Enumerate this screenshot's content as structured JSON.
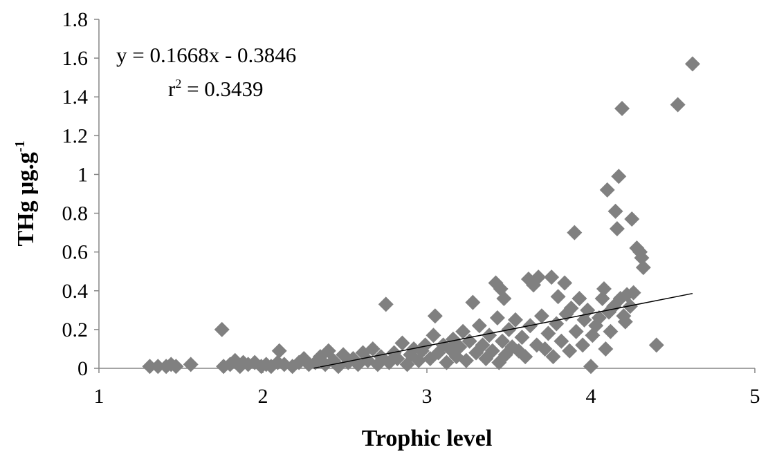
{
  "chart_data": {
    "type": "scatter",
    "xlabel": "Trophic level",
    "ylabel_main": "THg μg.g",
    "ylabel_sup": "-1",
    "xlim": [
      1,
      5
    ],
    "ylim": [
      0,
      1.8
    ],
    "xticks": [
      "1",
      "2",
      "3",
      "4",
      "5"
    ],
    "yticks": [
      "0",
      "0.2",
      "0.4",
      "0.6",
      "0.8",
      "1",
      "1.2",
      "1.4",
      "1.6",
      "1.8"
    ],
    "grid": false,
    "legend": "none",
    "marker": "diamond",
    "marker_color": "#808080",
    "trendline": {
      "slope": 0.1668,
      "intercept": -0.3846,
      "x_range": [
        2.31,
        4.62
      ],
      "color": "#000000"
    },
    "annotation": {
      "equation": "y = 0.1668x  - 0.3846",
      "r2_base": "r",
      "r2_sup": "2",
      "r2_rest": " = 0.3439"
    },
    "points": [
      [
        1.31,
        0.01
      ],
      [
        1.36,
        0.01
      ],
      [
        1.41,
        0.01
      ],
      [
        1.44,
        0.02
      ],
      [
        1.47,
        0.01
      ],
      [
        1.56,
        0.02
      ],
      [
        1.75,
        0.2
      ],
      [
        1.76,
        0.01
      ],
      [
        1.8,
        0.02
      ],
      [
        1.83,
        0.04
      ],
      [
        1.86,
        0.01
      ],
      [
        1.88,
        0.03
      ],
      [
        1.91,
        0.02
      ],
      [
        1.95,
        0.03
      ],
      [
        1.99,
        0.01
      ],
      [
        2.02,
        0.02
      ],
      [
        2.05,
        0.01
      ],
      [
        2.09,
        0.03
      ],
      [
        2.1,
        0.09
      ],
      [
        2.13,
        0.02
      ],
      [
        2.18,
        0.01
      ],
      [
        2.22,
        0.03
      ],
      [
        2.25,
        0.05
      ],
      [
        2.28,
        0.02
      ],
      [
        2.32,
        0.03
      ],
      [
        2.35,
        0.06
      ],
      [
        2.38,
        0.02
      ],
      [
        2.4,
        0.09
      ],
      [
        2.43,
        0.04
      ],
      [
        2.46,
        0.01
      ],
      [
        2.49,
        0.07
      ],
      [
        2.52,
        0.03
      ],
      [
        2.55,
        0.05
      ],
      [
        2.58,
        0.02
      ],
      [
        2.61,
        0.08
      ],
      [
        2.64,
        0.04
      ],
      [
        2.67,
        0.1
      ],
      [
        2.7,
        0.02
      ],
      [
        2.72,
        0.06
      ],
      [
        2.75,
        0.33
      ],
      [
        2.77,
        0.03
      ],
      [
        2.8,
        0.08
      ],
      [
        2.82,
        0.05
      ],
      [
        2.85,
        0.13
      ],
      [
        2.88,
        0.02
      ],
      [
        2.9,
        0.07
      ],
      [
        2.92,
        0.1
      ],
      [
        2.95,
        0.04
      ],
      [
        2.97,
        0.09
      ],
      [
        2.99,
        0.12
      ],
      [
        3.02,
        0.05
      ],
      [
        3.04,
        0.17
      ],
      [
        3.05,
        0.27
      ],
      [
        3.07,
        0.08
      ],
      [
        3.1,
        0.12
      ],
      [
        3.12,
        0.03
      ],
      [
        3.14,
        0.1
      ],
      [
        3.16,
        0.15
      ],
      [
        3.18,
        0.06
      ],
      [
        3.2,
        0.11
      ],
      [
        3.22,
        0.19
      ],
      [
        3.24,
        0.04
      ],
      [
        3.26,
        0.14
      ],
      [
        3.28,
        0.34
      ],
      [
        3.3,
        0.08
      ],
      [
        3.32,
        0.22
      ],
      [
        3.34,
        0.12
      ],
      [
        3.36,
        0.05
      ],
      [
        3.38,
        0.17
      ],
      [
        3.4,
        0.09
      ],
      [
        3.42,
        0.44
      ],
      [
        3.43,
        0.26
      ],
      [
        3.44,
        0.03
      ],
      [
        3.45,
        0.41
      ],
      [
        3.46,
        0.14
      ],
      [
        3.47,
        0.36
      ],
      [
        3.48,
        0.07
      ],
      [
        3.5,
        0.2
      ],
      [
        3.52,
        0.11
      ],
      [
        3.54,
        0.25
      ],
      [
        3.56,
        0.09
      ],
      [
        3.58,
        0.16
      ],
      [
        3.6,
        0.06
      ],
      [
        3.62,
        0.46
      ],
      [
        3.63,
        0.22
      ],
      [
        3.65,
        0.43
      ],
      [
        3.67,
        0.12
      ],
      [
        3.68,
        0.47
      ],
      [
        3.7,
        0.27
      ],
      [
        3.72,
        0.1
      ],
      [
        3.74,
        0.18
      ],
      [
        3.76,
        0.47
      ],
      [
        3.77,
        0.06
      ],
      [
        3.79,
        0.23
      ],
      [
        3.8,
        0.37
      ],
      [
        3.82,
        0.14
      ],
      [
        3.84,
        0.44
      ],
      [
        3.85,
        0.28
      ],
      [
        3.87,
        0.09
      ],
      [
        3.88,
        0.31
      ],
      [
        3.9,
        0.7
      ],
      [
        3.91,
        0.19
      ],
      [
        3.93,
        0.36
      ],
      [
        3.95,
        0.12
      ],
      [
        3.96,
        0.25
      ],
      [
        3.98,
        0.3
      ],
      [
        4.0,
        0.01
      ],
      [
        4.01,
        0.17
      ],
      [
        4.03,
        0.22
      ],
      [
        4.05,
        0.26
      ],
      [
        4.07,
        0.36
      ],
      [
        4.08,
        0.41
      ],
      [
        4.09,
        0.1
      ],
      [
        4.1,
        0.92
      ],
      [
        4.11,
        0.29
      ],
      [
        4.12,
        0.19
      ],
      [
        4.14,
        0.32
      ],
      [
        4.15,
        0.81
      ],
      [
        4.16,
        0.72
      ],
      [
        4.17,
        0.99
      ],
      [
        4.18,
        0.36
      ],
      [
        4.19,
        1.34
      ],
      [
        4.2,
        0.27
      ],
      [
        4.21,
        0.24
      ],
      [
        4.22,
        0.38
      ],
      [
        4.24,
        0.32
      ],
      [
        4.25,
        0.77
      ],
      [
        4.26,
        0.39
      ],
      [
        4.28,
        0.62
      ],
      [
        4.3,
        0.6
      ],
      [
        4.31,
        0.57
      ],
      [
        4.32,
        0.52
      ],
      [
        4.4,
        0.12
      ],
      [
        4.53,
        1.36
      ],
      [
        4.62,
        1.57
      ]
    ]
  }
}
